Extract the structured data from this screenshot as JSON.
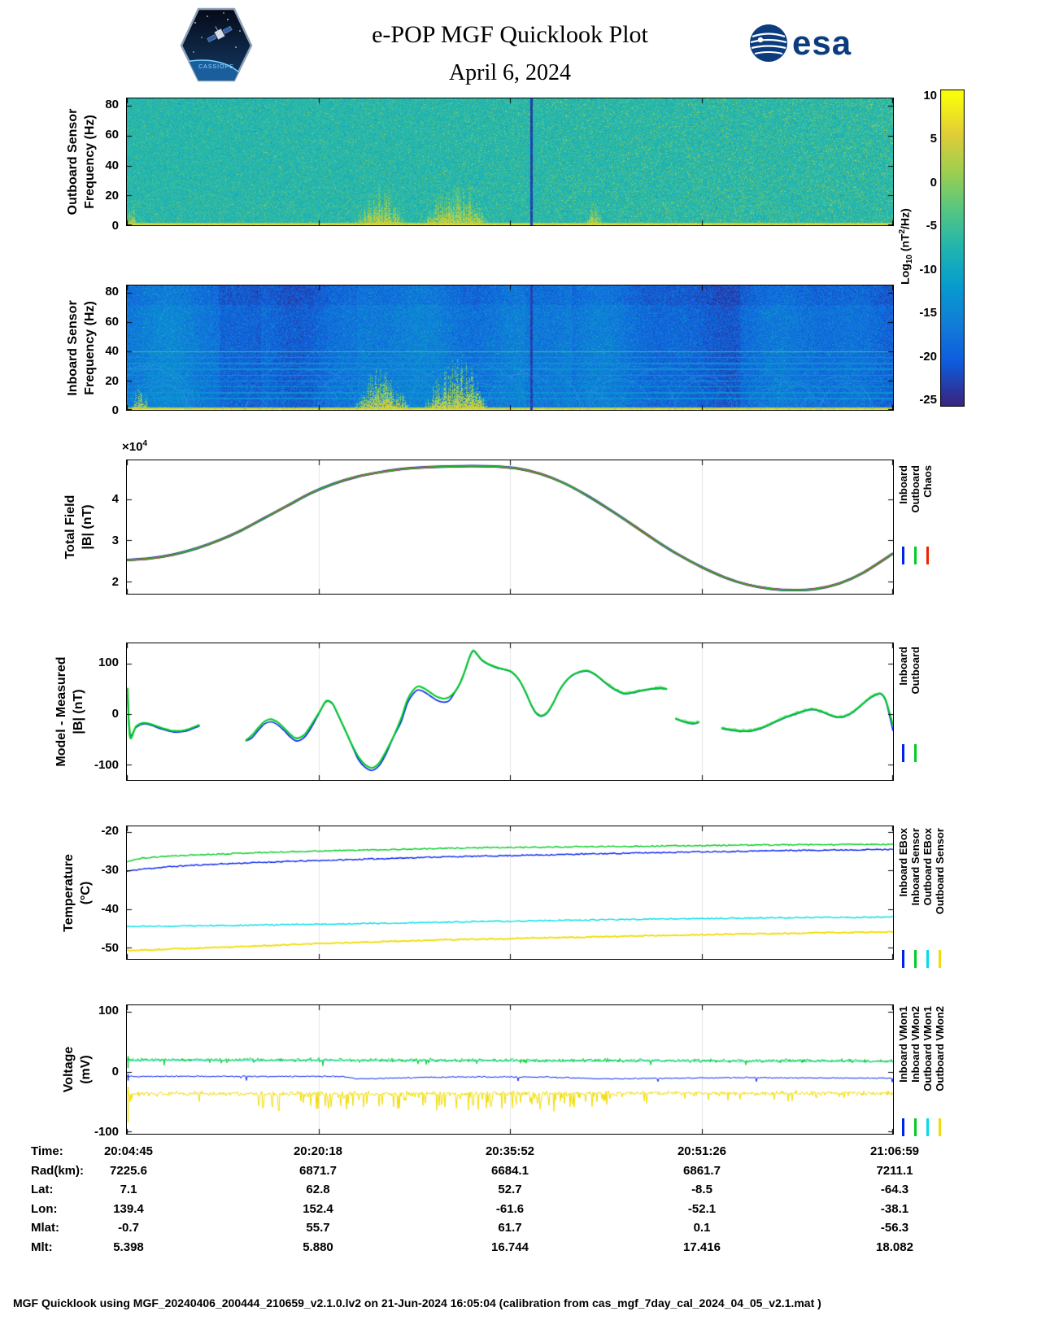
{
  "header": {
    "title": "e-POP MGF Quicklook Plot",
    "date": "April 6, 2024",
    "cassiope_label": "CASSIOPE",
    "esa_label": "esa"
  },
  "colorbar": {
    "label_log": "Log",
    "label_sub": "10",
    "label_unit_a": " (nT",
    "label_sup": "2",
    "label_unit_b": "/Hz)",
    "ticks": [
      10,
      5,
      0,
      -5,
      -10,
      -15,
      -20,
      -25
    ],
    "clim": [
      -25,
      10
    ]
  },
  "chart_data": [
    {
      "id": "outboard_spectrogram",
      "type": "heatmap",
      "ylabel1": "Outboard Sensor",
      "ylabel2": "Frequency (Hz)",
      "ylim": [
        0,
        85
      ],
      "yticks": [
        0,
        20,
        40,
        60,
        80
      ],
      "clim": [
        -25,
        10
      ],
      "background_log_power": -7,
      "speckle_increases_toward_end": true,
      "burst_regions": [
        [
          0.0,
          0.012,
          0.6
        ],
        [
          0.295,
          0.365,
          0.95
        ],
        [
          0.385,
          0.475,
          1.0
        ],
        [
          0.598,
          0.622,
          0.5
        ]
      ],
      "gap_line_x": 0.528,
      "bottom_band_log_power": 5,
      "note": "turquoise broadband noise with yellow-green speckle growing toward end of pass, intense yellow bursts near 0 Hz mid-pass, faint whistler arcs, narrow dark data-gap line"
    },
    {
      "id": "inboard_spectrogram",
      "type": "heatmap",
      "ylabel1": "Inboard Sensor",
      "ylabel2": "Frequency (Hz)",
      "ylim": [
        0,
        85
      ],
      "yticks": [
        0,
        20,
        40,
        60,
        80
      ],
      "clim": [
        -25,
        10
      ],
      "background_log_power": -17.5,
      "interference_lines_hz": [
        8,
        12,
        16,
        20,
        24,
        28,
        32,
        36,
        40
      ],
      "strong_line_hz": 40,
      "burst_regions": [
        [
          0.005,
          0.03,
          0.5
        ],
        [
          0.295,
          0.37,
          0.9
        ],
        [
          0.385,
          0.475,
          1.0
        ]
      ],
      "gap_line_x": 0.528,
      "bottom_band_log_power": 5,
      "note": "dark blue broadband noise, cyan interference line at 40 Hz plus faint harmonics, light-blue arcs, yellow bursts near 0 Hz mid-pass, narrow dark data-gap line"
    },
    {
      "id": "total_field",
      "type": "line",
      "ylabel1": "Total Field",
      "ylabel2": "|B| (nT)",
      "scale_prefix": "×10",
      "scale_exp": "4",
      "unit_scale": 10000,
      "ylim": [
        1.7,
        4.95
      ],
      "yticks": [
        2,
        3,
        4
      ],
      "x": [
        0,
        0.03,
        0.06,
        0.09,
        0.12,
        0.15,
        0.18,
        0.21,
        0.24,
        0.27,
        0.3,
        0.33,
        0.36,
        0.39,
        0.42,
        0.45,
        0.48,
        0.51,
        0.54,
        0.57,
        0.6,
        0.63,
        0.66,
        0.69,
        0.72,
        0.75,
        0.78,
        0.81,
        0.84,
        0.87,
        0.9,
        0.93,
        0.96,
        1.0
      ],
      "y": [
        2.52,
        2.56,
        2.65,
        2.8,
        3.0,
        3.25,
        3.55,
        3.85,
        4.15,
        4.38,
        4.55,
        4.66,
        4.74,
        4.78,
        4.8,
        4.81,
        4.8,
        4.75,
        4.62,
        4.4,
        4.1,
        3.75,
        3.38,
        3.0,
        2.65,
        2.35,
        2.1,
        1.92,
        1.82,
        1.79,
        1.82,
        1.95,
        2.2,
        2.68
      ],
      "series": [
        {
          "name": "Inboard",
          "color": "#0022ee"
        },
        {
          "name": "Outboard",
          "color": "#00cc22"
        },
        {
          "name": "Chaos",
          "color": "#ee2200"
        }
      ],
      "note": "all three series overlap within line width"
    },
    {
      "id": "model_minus_measured",
      "type": "line",
      "ylabel1": "Model - Measured",
      "ylabel2": "|B| (nT)",
      "ylim": [
        -130,
        140
      ],
      "yticks": [
        -100,
        0,
        100
      ],
      "series": [
        {
          "name": "Inboard",
          "color": "#0022ee"
        },
        {
          "name": "Outboard",
          "color": "#00cc22"
        }
      ],
      "segments": [
        {
          "x": [
            0.001,
            0.004,
            0.012,
            0.022,
            0.032,
            0.045,
            0.06,
            0.075,
            0.085,
            0.095
          ],
          "outboard": [
            52,
            -45,
            -24,
            -17,
            -20,
            -27,
            -33,
            -32,
            -27,
            -21
          ],
          "inboard": [
            40,
            -40,
            -26,
            -19,
            -22,
            -29,
            -35,
            -34,
            -29,
            -23
          ]
        },
        {
          "x": [
            0.155,
            0.163,
            0.172,
            0.18,
            0.188,
            0.196,
            0.205,
            0.214,
            0.222,
            0.232,
            0.242,
            0.252,
            0.26,
            0.268,
            0.276,
            0.284,
            0.293,
            0.302,
            0.311,
            0.32,
            0.329,
            0.338,
            0.348,
            0.358,
            0.366,
            0.373,
            0.38,
            0.388,
            0.396,
            0.404,
            0.412,
            0.42,
            0.428,
            0.435,
            0.441,
            0.447,
            0.452,
            0.457,
            0.463,
            0.472,
            0.482,
            0.492,
            0.502,
            0.512,
            0.521,
            0.528,
            0.534,
            0.541,
            0.549,
            0.557,
            0.564,
            0.572,
            0.581,
            0.591,
            0.601,
            0.611,
            0.621,
            0.631,
            0.641,
            0.65,
            0.659,
            0.668,
            0.678,
            0.688,
            0.698,
            0.705
          ],
          "outboard": [
            -52,
            -42,
            -26,
            -14,
            -10,
            -15,
            -27,
            -41,
            -48,
            -40,
            -18,
            6,
            26,
            22,
            -2,
            -28,
            -58,
            -84,
            -100,
            -106,
            -97,
            -74,
            -44,
            -8,
            28,
            46,
            55,
            51,
            43,
            35,
            31,
            33,
            44,
            62,
            85,
            112,
            126,
            119,
            108,
            99,
            93,
            89,
            84,
            68,
            42,
            18,
            3,
            -3,
            4,
            24,
            46,
            64,
            77,
            84,
            86,
            79,
            67,
            55,
            46,
            41,
            43,
            46,
            49,
            51,
            52,
            50
          ],
          "inboard": [
            -53,
            -47,
            -31,
            -19,
            -15,
            -20,
            -32,
            -46,
            -53,
            -45,
            -23,
            5,
            25,
            21,
            -3,
            -29,
            -59,
            -89,
            -105,
            -111,
            -102,
            -79,
            -45,
            -15,
            21,
            39,
            48,
            44,
            36,
            28,
            24,
            26,
            43,
            61,
            84,
            111,
            125,
            118,
            107,
            98,
            92,
            88,
            83,
            67,
            41,
            17,
            2,
            -4,
            3,
            23,
            45,
            63,
            76,
            83,
            85,
            78,
            66,
            54,
            45,
            40,
            42,
            45,
            48,
            50,
            51,
            49
          ]
        },
        {
          "x": [
            0.716,
            0.724,
            0.732,
            0.74,
            0.747
          ],
          "outboard": [
            -8,
            -13,
            -16,
            -18,
            -15
          ],
          "inboard": [
            -9,
            -14,
            -17,
            -19,
            -16
          ]
        },
        {
          "x": [
            0.776,
            0.786,
            0.796,
            0.806,
            0.816,
            0.826,
            0.836,
            0.846,
            0.856,
            0.866,
            0.876,
            0.886,
            0.896,
            0.906,
            0.916,
            0.926,
            0.936,
            0.946,
            0.956,
            0.966,
            0.976,
            0.984,
            0.99,
            0.995,
            1.0
          ],
          "outboard": [
            -27,
            -30,
            -32,
            -33,
            -32,
            -28,
            -22,
            -15,
            -8,
            -2,
            3,
            8,
            10,
            6,
            0,
            -5,
            -4,
            3,
            15,
            28,
            38,
            41,
            30,
            5,
            -22
          ],
          "inboard": [
            -28,
            -31,
            -33,
            -34,
            -33,
            -29,
            -23,
            -16,
            -9,
            -3,
            2,
            7,
            9,
            5,
            -1,
            -6,
            -5,
            2,
            14,
            27,
            37,
            40,
            28,
            0,
            -33
          ]
        }
      ]
    },
    {
      "id": "temperature",
      "type": "line",
      "ylabel1": "Temperature",
      "ylabel2": "(°C)",
      "ylim": [
        -53,
        -18.5
      ],
      "yticks": [
        -50,
        -40,
        -30,
        -20
      ],
      "x": [
        0,
        0.02,
        0.05,
        0.08,
        0.12,
        0.16,
        0.2,
        0.25,
        0.3,
        0.35,
        0.4,
        0.45,
        0.5,
        0.55,
        0.6,
        0.65,
        0.7,
        0.75,
        0.8,
        0.85,
        0.9,
        0.95,
        1.0
      ],
      "series": [
        {
          "name": "Inboard EBox",
          "color": "#0022ee",
          "y": [
            -30.2,
            -29.6,
            -29.1,
            -28.7,
            -28.3,
            -28.0,
            -27.7,
            -27.4,
            -27.1,
            -26.8,
            -26.5,
            -26.3,
            -26.1,
            -25.9,
            -25.7,
            -25.5,
            -25.3,
            -25.1,
            -25.0,
            -24.8,
            -24.7,
            -24.6,
            -24.5
          ]
        },
        {
          "name": "Inboard Sensor",
          "color": "#00cc22",
          "y": [
            -27.6,
            -26.8,
            -26.3,
            -26.0,
            -25.7,
            -25.4,
            -25.2,
            -24.9,
            -24.7,
            -24.5,
            -24.3,
            -24.1,
            -24.0,
            -23.9,
            -23.8,
            -23.7,
            -23.6,
            -23.5,
            -23.4,
            -23.3,
            -23.3,
            -23.2,
            -23.2
          ]
        },
        {
          "name": "Outboard EBox",
          "color": "#00dde8",
          "y": [
            -44.6,
            -44.5,
            -44.5,
            -44.4,
            -44.3,
            -44.2,
            -44.1,
            -44.0,
            -43.8,
            -43.7,
            -43.5,
            -43.3,
            -43.2,
            -43.0,
            -42.9,
            -42.7,
            -42.6,
            -42.5,
            -42.4,
            -42.3,
            -42.2,
            -42.2,
            -42.1
          ]
        },
        {
          "name": "Outboard Sensor",
          "color": "#f0dc00",
          "y": [
            -50.9,
            -50.7,
            -50.5,
            -50.3,
            -50.0,
            -49.7,
            -49.4,
            -49.0,
            -48.7,
            -48.4,
            -48.1,
            -47.9,
            -47.7,
            -47.5,
            -47.3,
            -47.1,
            -46.9,
            -46.7,
            -46.5,
            -46.4,
            -46.2,
            -46.1,
            -46.0
          ]
        }
      ]
    },
    {
      "id": "voltage",
      "type": "line",
      "ylabel1": "Voltage",
      "ylabel2": "(mV)",
      "ylim": [
        -104,
        111
      ],
      "yticks": [
        -100,
        0,
        100
      ],
      "series": [
        {
          "name": "Inboard VMon1",
          "color": "#0022ee",
          "noise": 1.1,
          "dip_prob": 0.012,
          "dip_depth": 7,
          "base": [
            [
              0,
              -8
            ],
            [
              0.28,
              -8
            ],
            [
              0.3,
              -12
            ],
            [
              0.42,
              -9
            ],
            [
              0.55,
              -9
            ],
            [
              0.62,
              -12
            ],
            [
              0.8,
              -10
            ],
            [
              1,
              -11
            ]
          ]
        },
        {
          "name": "Inboard VMon2",
          "color": "#00cc22",
          "noise": 3.0,
          "dip_prob": 0.03,
          "dip_depth": 9,
          "base": [
            [
              0,
              20
            ],
            [
              0.5,
              19
            ],
            [
              1,
              18
            ]
          ]
        },
        {
          "name": "Outboard VMon1",
          "color": "#00dde8",
          "noise": 1.5,
          "dip_prob": 0,
          "dip_depth": 0,
          "base": [
            [
              0,
              19
            ],
            [
              1,
              17
            ]
          ]
        },
        {
          "name": "Outboard VMon2",
          "color": "#f0dc00",
          "noise": 3.5,
          "dip_prob": 0.3,
          "dip_depth": 28,
          "dip_range": [
            0.17,
            0.63
          ],
          "base": [
            [
              0,
              -37
            ],
            [
              1,
              -36
            ]
          ]
        }
      ]
    }
  ],
  "table": {
    "rows": [
      {
        "label": "Time:",
        "values": [
          "20:04:45",
          "20:20:18",
          "20:35:52",
          "20:51:26",
          "21:06:59"
        ]
      },
      {
        "label": "Rad(km):",
        "values": [
          "7225.6",
          "6871.7",
          "6684.1",
          "6861.7",
          "7211.1"
        ]
      },
      {
        "label": "Lat:",
        "values": [
          "7.1",
          "62.8",
          "52.7",
          "-8.5",
          "-64.3"
        ]
      },
      {
        "label": "Lon:",
        "values": [
          "139.4",
          "152.4",
          "-61.6",
          "-52.1",
          "-38.1"
        ]
      },
      {
        "label": "Mlat:",
        "values": [
          "-0.7",
          "55.7",
          "61.7",
          "0.1",
          "-56.3"
        ]
      },
      {
        "label": "Mlt:",
        "values": [
          "5.398",
          "5.880",
          "16.744",
          "17.416",
          "18.082"
        ]
      }
    ]
  },
  "footer": {
    "text": "MGF Quicklook using MGF_20240406_200444_210659_v2.1.0.lv2 on 21-Jun-2024 16:05:04 (calibration from cas_mgf_7day_cal_2024_04_05_v2.1.mat )"
  }
}
